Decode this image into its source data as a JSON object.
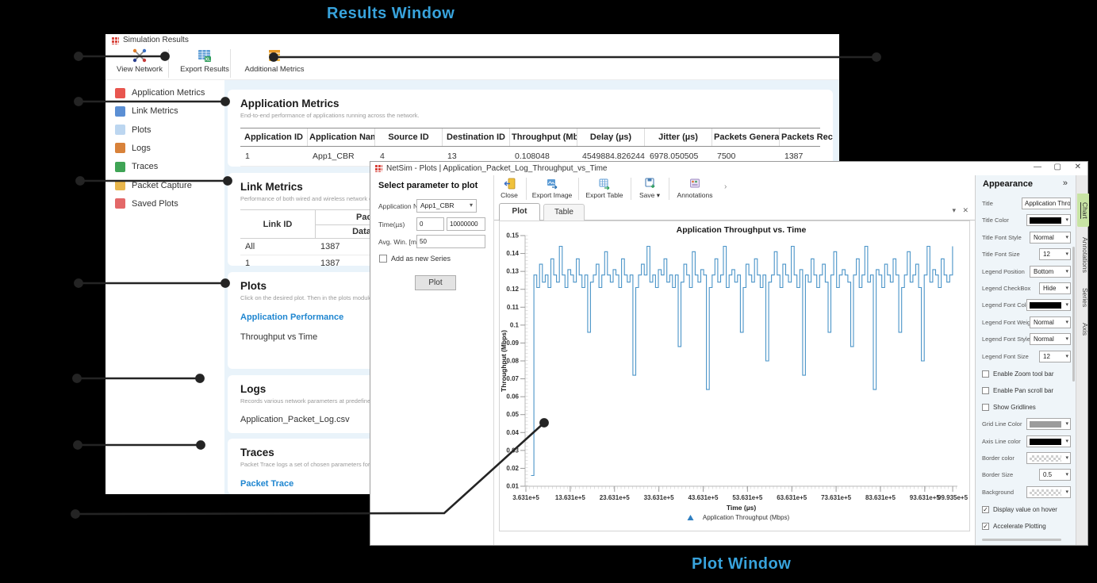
{
  "annotations": {
    "results_label": "Results Window",
    "plot_label": "Plot Window",
    "accent_color": "#38a3dc"
  },
  "results_window": {
    "title": "Simulation Results",
    "toolbar": [
      "View Network",
      "Export Results",
      "Additional Metrics"
    ],
    "sidebar": [
      "Application Metrics",
      "Link Metrics",
      "Plots",
      "Logs",
      "Traces",
      "Packet Capture",
      "Saved Plots"
    ],
    "application_metrics": {
      "title": "Application Metrics",
      "subtitle": "End-to-end performance of applications running across the network.",
      "columns": [
        "Application ID",
        "Application Name",
        "Source ID",
        "Destination ID",
        "Throughput (Mbps)",
        "Delay (µs)",
        "Jitter (µs)",
        "Packets Generated",
        "Packets Received"
      ],
      "rows": [
        [
          "1",
          "App1_CBR",
          "4",
          "13",
          "0.108048",
          "4549884.826244",
          "6978.050505",
          "7500",
          "1387"
        ]
      ]
    },
    "link_metrics": {
      "title": "Link Metrics",
      "subtitle": "Performance of both wired and wireless network connections.",
      "link_id_header": "Link ID",
      "group_header": "Packets",
      "sub_header": "Data",
      "rows": [
        [
          "All",
          "1387"
        ],
        [
          "1",
          "1387"
        ]
      ]
    },
    "plots": {
      "title": "Plots",
      "subtitle": "Click on the desired plot. Then in the plots module, choose the desired options.",
      "link": "Application Performance",
      "item": "Throughput vs Time"
    },
    "logs": {
      "title": "Logs",
      "subtitle": "Records various network parameters at predefined time intervals into a log file.",
      "item": "Application_Packet_Log.csv"
    },
    "traces": {
      "title": "Traces",
      "subtitle": "Packet Trace logs a set of chosen parameters for every packet/event in the network.",
      "link": "Packet Trace"
    }
  },
  "plot_window": {
    "title": "NetSim - Plots | Application_Packet_Log_Throughput_vs_Time",
    "window_controls": [
      "—",
      "▢",
      "✕"
    ],
    "params": {
      "heading": "Select parameter to plot",
      "app_label": "Application Na...",
      "app_value": "App1_CBR",
      "time_label": "Time(µs)",
      "time_from": "0",
      "time_to": "10000000",
      "avg_label": "Avg. Win. [ms]",
      "avg_value": "50",
      "series_checkbox": "Add as new Series",
      "plot_button": "Plot"
    },
    "toolbar": [
      "Close",
      "Export Image",
      "Export Table",
      "Save",
      "Annotations"
    ],
    "tabs": [
      "Plot",
      "Table"
    ],
    "appearance": {
      "header": "Appearance",
      "collapse_glyph": "»",
      "rows": [
        {
          "label": "Title",
          "kind": "text",
          "value": "Application Throughpu"
        },
        {
          "label": "Title Color",
          "kind": "color",
          "value": "#000000"
        },
        {
          "label": "Title Font Style",
          "kind": "select",
          "value": "Normal"
        },
        {
          "label": "Title Font Size",
          "kind": "select",
          "value": "12",
          "narrow": true
        },
        {
          "label": "Legend Position",
          "kind": "select",
          "value": "Bottom"
        },
        {
          "label": "Legend CheckBox",
          "kind": "select",
          "value": "Hide",
          "narrow": true
        },
        {
          "label": "Legend Font Color",
          "kind": "color",
          "value": "#000000"
        },
        {
          "label": "Legend Font Weight",
          "kind": "select",
          "value": "Normal"
        },
        {
          "label": "Legend Font Style",
          "kind": "select",
          "value": "Normal"
        },
        {
          "label": "Legend Font Size",
          "kind": "select",
          "value": "12",
          "narrow": true
        },
        {
          "label": "Enable Zoom tool bar",
          "kind": "checkbox",
          "checked": false
        },
        {
          "label": "Enable Pan scroll bar",
          "kind": "checkbox",
          "checked": false
        },
        {
          "label": "Show Gridlines",
          "kind": "checkbox",
          "checked": false
        },
        {
          "label": "Grid Line Color",
          "kind": "color",
          "value": "#9c9c9c"
        },
        {
          "label": "Axis Line color",
          "kind": "color",
          "value": "#000000"
        },
        {
          "label": "Border color",
          "kind": "alpha"
        },
        {
          "label": "Border Size",
          "kind": "select",
          "value": "0.5",
          "narrow": true
        },
        {
          "label": "Background",
          "kind": "alpha"
        },
        {
          "label": "Display value on hover",
          "kind": "checkbox",
          "checked": true
        },
        {
          "label": "Accelerate Plotting",
          "kind": "checkbox",
          "checked": true
        }
      ]
    },
    "side_tabs": [
      "Chart",
      "Annotations",
      "Series",
      "Axis"
    ],
    "selected_side_tab": "Chart"
  },
  "chart_data": {
    "type": "line",
    "title": "Application Throughput vs. Time",
    "xlabel": "Time (µs)",
    "ylabel": "Throughput (Mbps)",
    "legend": [
      "Application Throughput (Mbps)"
    ],
    "legend_position": "bottom",
    "grid": false,
    "line_color": "#4a94c8",
    "legend_marker": "▲",
    "xlim": [
      345000,
      10100000
    ],
    "ylim": [
      0.01,
      0.15
    ],
    "x_ticks": [
      {
        "v": 363100,
        "label": "3.631e+5"
      },
      {
        "v": 1363100,
        "label": "13.631e+5"
      },
      {
        "v": 2363100,
        "label": "23.631e+5"
      },
      {
        "v": 3363100,
        "label": "33.631e+5"
      },
      {
        "v": 4363100,
        "label": "43.631e+5"
      },
      {
        "v": 5363100,
        "label": "53.631e+5"
      },
      {
        "v": 6363100,
        "label": "63.631e+5"
      },
      {
        "v": 7363100,
        "label": "73.631e+5"
      },
      {
        "v": 8363100,
        "label": "83.631e+5"
      },
      {
        "v": 9363100,
        "label": "93.631e+5"
      },
      {
        "v": 9993500,
        "label": "99.935e+5"
      }
    ],
    "y_tick_labels": [
      "0.01",
      "0.02",
      "0.03",
      "0.04",
      "0.05",
      "0.06",
      "0.07",
      "0.08",
      "0.09",
      "0.1",
      "0.11",
      "0.12",
      "0.13",
      "0.14",
      "0.15"
    ],
    "series": [
      {
        "name": "Application Throughput (Mbps)",
        "x_start": 480000,
        "x_end": 9990000,
        "y": [
          0.016,
          0.128,
          0.121,
          0.134,
          0.124,
          0.128,
          0.121,
          0.137,
          0.128,
          0.124,
          0.144,
          0.128,
          0.121,
          0.131,
          0.128,
          0.124,
          0.137,
          0.128,
          0.121,
          0.128,
          0.096,
          0.124,
          0.128,
          0.134,
          0.121,
          0.128,
          0.141,
          0.128,
          0.124,
          0.131,
          0.128,
          0.121,
          0.137,
          0.128,
          0.124,
          0.128,
          0.072,
          0.121,
          0.128,
          0.134,
          0.128,
          0.144,
          0.124,
          0.128,
          0.121,
          0.131,
          0.128,
          0.137,
          0.124,
          0.128,
          0.121,
          0.128,
          0.088,
          0.124,
          0.134,
          0.128,
          0.121,
          0.141,
          0.128,
          0.124,
          0.131,
          0.128,
          0.064,
          0.121,
          0.128,
          0.137,
          0.124,
          0.128,
          0.144,
          0.121,
          0.128,
          0.131,
          0.124,
          0.128,
          0.096,
          0.121,
          0.134,
          0.128,
          0.124,
          0.137,
          0.128,
          0.121,
          0.128,
          0.08,
          0.124,
          0.128,
          0.141,
          0.128,
          0.121,
          0.134,
          0.128,
          0.124,
          0.144,
          0.128,
          0.121,
          0.131,
          0.072,
          0.128,
          0.124,
          0.137,
          0.128,
          0.121,
          0.128,
          0.134,
          0.124,
          0.096,
          0.128,
          0.141,
          0.121,
          0.128,
          0.131,
          0.128,
          0.124,
          0.088,
          0.128,
          0.137,
          0.121,
          0.128,
          0.144,
          0.124,
          0.128,
          0.064,
          0.131,
          0.128,
          0.121,
          0.134,
          0.128,
          0.124,
          0.137,
          0.128,
          0.096,
          0.121,
          0.128,
          0.141,
          0.124,
          0.128,
          0.134,
          0.121,
          0.08,
          0.128,
          0.144,
          0.124,
          0.131,
          0.128,
          0.121,
          0.137,
          0.128,
          0.124,
          0.128,
          0.144
        ]
      }
    ]
  }
}
